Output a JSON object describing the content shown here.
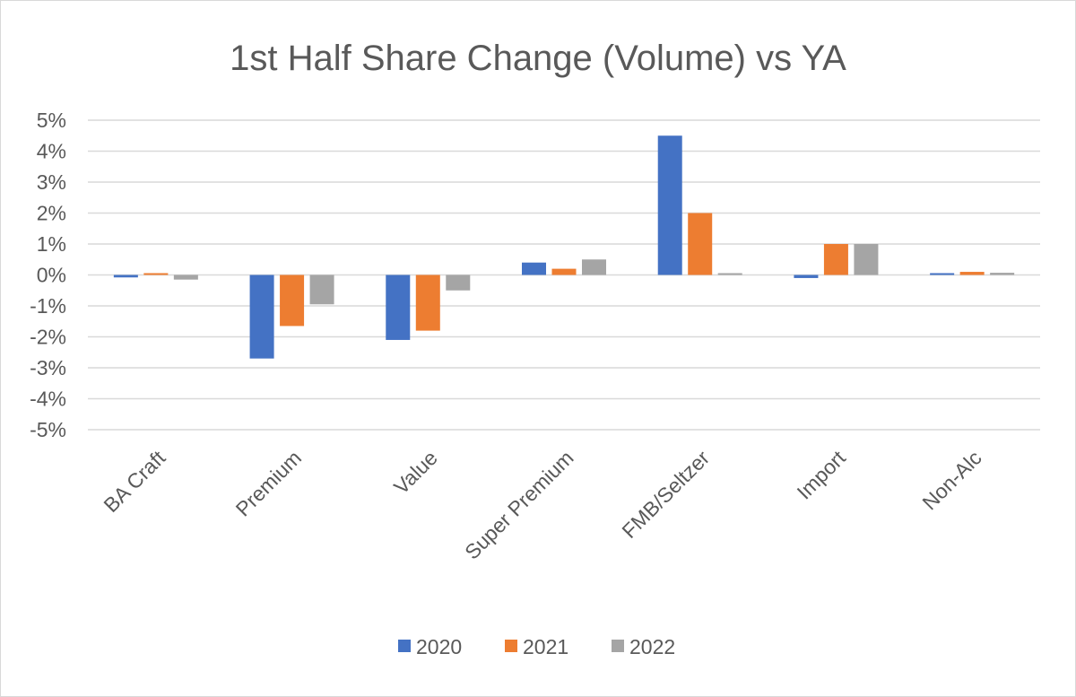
{
  "chart_data": {
    "type": "bar",
    "title": "1st Half Share Change (Volume) vs YA",
    "xlabel": "",
    "ylabel": "",
    "categories": [
      "BA Craft",
      "Premium",
      "Value",
      "Super Premium",
      "FMB/Seltzer",
      "Import",
      "Non-Alc"
    ],
    "series": [
      {
        "name": "2020",
        "color": "#4472c4",
        "values": [
          -0.08,
          -2.7,
          -2.1,
          0.4,
          4.5,
          -0.1,
          0.03
        ]
      },
      {
        "name": "2021",
        "color": "#ed7d31",
        "values": [
          0.05,
          -1.65,
          -1.8,
          0.2,
          2.0,
          1.0,
          0.1
        ]
      },
      {
        "name": "2022",
        "color": "#a5a5a5",
        "values": [
          -0.15,
          -0.95,
          -0.5,
          0.5,
          0.0,
          1.0,
          0.07
        ]
      }
    ],
    "ylim": [
      -5,
      5
    ],
    "yticks": [
      5,
      4,
      3,
      2,
      1,
      0,
      -1,
      -2,
      -3,
      -4,
      -5
    ],
    "ytick_labels": [
      "5%",
      "4%",
      "3%",
      "2%",
      "1%",
      "0%",
      "-1%",
      "-2%",
      "-3%",
      "-4%",
      "-5%"
    ],
    "grid": true,
    "legend_position": "bottom"
  }
}
